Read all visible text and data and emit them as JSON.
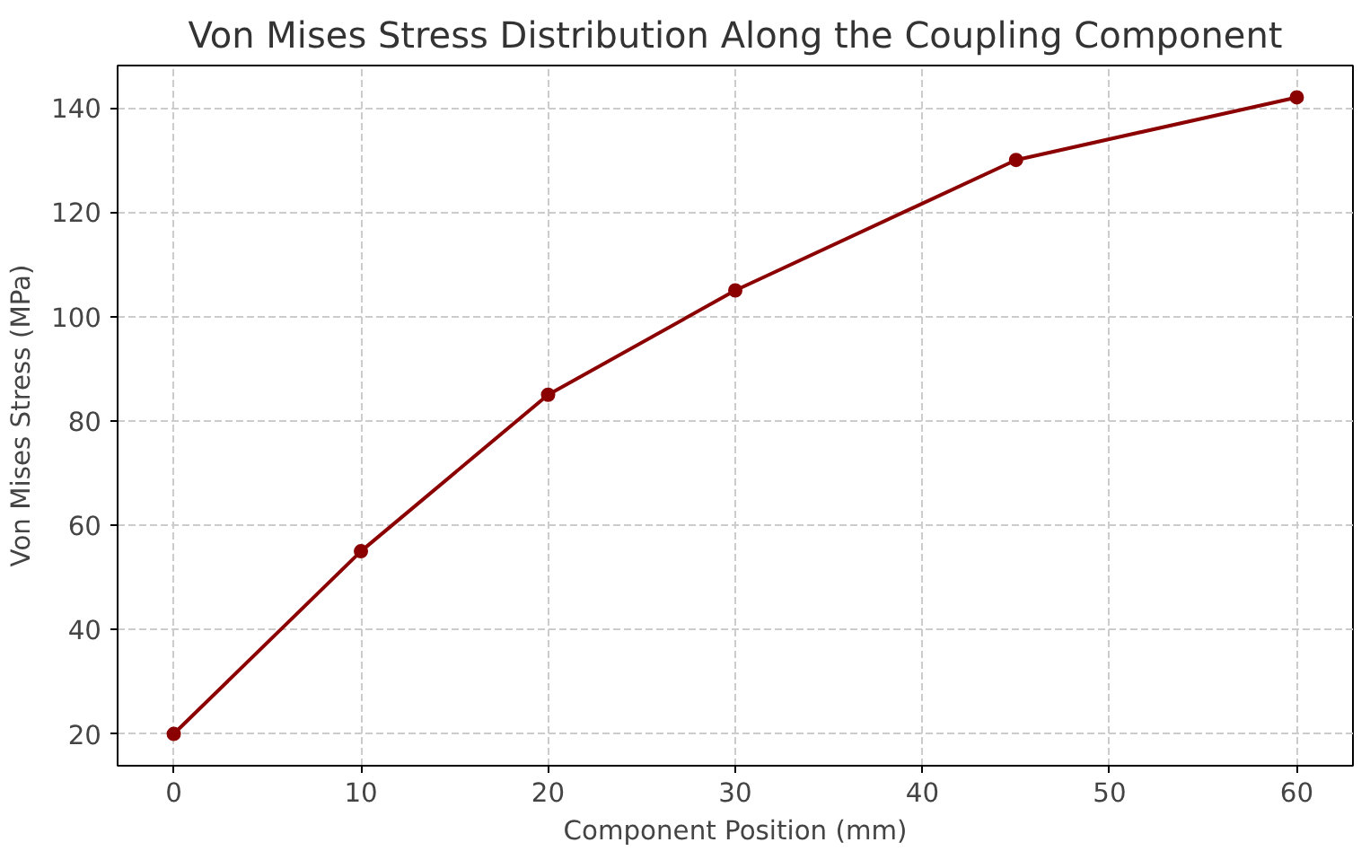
{
  "chart_data": {
    "type": "line",
    "title": "Von Mises Stress Distribution Along the Coupling Component",
    "xlabel": "Component Position (mm)",
    "ylabel": "Von Mises Stress (MPa)",
    "x": [
      0,
      10,
      20,
      30,
      45,
      60
    ],
    "series": [
      {
        "color": "#8b0000",
        "values": [
          20,
          55,
          85,
          105,
          130,
          142
        ]
      }
    ],
    "xlim": [
      -3,
      63
    ],
    "ylim": [
      13.9,
      148.1
    ],
    "xticks": [
      0,
      10,
      20,
      30,
      40,
      50,
      60
    ],
    "yticks": [
      20,
      40,
      60,
      80,
      100,
      120,
      140
    ],
    "grid": true,
    "marker": "circle",
    "line_style": "solid"
  }
}
